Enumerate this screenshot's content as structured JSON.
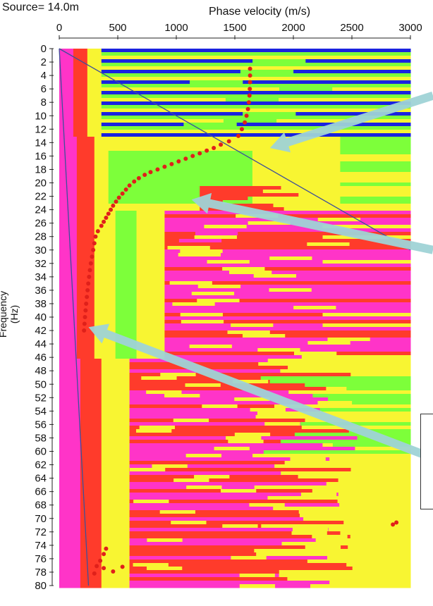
{
  "header": {
    "source_label": "Source= 14.0m",
    "x_axis_title": "Phase velocity (m/s)",
    "y_axis_title": "Frequency (Hz)"
  },
  "colors": {
    "background": "#ffffff",
    "picked_points": "#e0201a",
    "arrow": "#9fd3d6",
    "diagonal_line": "#3d4f9a",
    "magenta": "#ff34c8",
    "red": "#ff3b2b",
    "yellow": "#f8f532",
    "green": "#7dff3a",
    "blue": "#1a22e0"
  },
  "chart_data": {
    "type": "heatmap",
    "title": "",
    "xlabel": "Phase velocity (m/s)",
    "ylabel": "Frequency (Hz)",
    "xlim": [
      0,
      3000
    ],
    "ylim": [
      0,
      80
    ],
    "x_ticks": [
      "0",
      "500",
      "1000",
      "1500",
      "2000",
      "2500",
      "3000"
    ],
    "y_ticks": [
      "0",
      "2",
      "4",
      "6",
      "8",
      "10",
      "12",
      "14",
      "16",
      "18",
      "20",
      "22",
      "24",
      "26",
      "28",
      "30",
      "32",
      "34",
      "36",
      "38",
      "40",
      "42",
      "44",
      "46",
      "48",
      "50",
      "52",
      "54",
      "56",
      "58",
      "60",
      "62",
      "64",
      "66",
      "68",
      "70",
      "72",
      "74",
      "76",
      "78",
      "80"
    ],
    "picked_dispersion_curve": {
      "points": [
        [
          1630,
          3
        ],
        [
          1630,
          4
        ],
        [
          1630,
          5
        ],
        [
          1628,
          6
        ],
        [
          1625,
          7
        ],
        [
          1620,
          8
        ],
        [
          1612,
          9
        ],
        [
          1600,
          10
        ],
        [
          1585,
          11
        ],
        [
          1560,
          12
        ],
        [
          1530,
          13
        ],
        [
          1450,
          13.8
        ],
        [
          1380,
          14.3
        ],
        [
          1320,
          14.8
        ],
        [
          1260,
          15.2
        ],
        [
          1200,
          15.6
        ],
        [
          1140,
          16
        ],
        [
          1080,
          16.4
        ],
        [
          1020,
          16.8
        ],
        [
          960,
          17.2
        ],
        [
          900,
          17.6
        ],
        [
          840,
          18
        ],
        [
          780,
          18.4
        ],
        [
          730,
          18.8
        ],
        [
          680,
          19.3
        ],
        [
          640,
          19.8
        ],
        [
          600,
          20.4
        ],
        [
          570,
          21
        ],
        [
          540,
          21.6
        ],
        [
          510,
          22.2
        ],
        [
          485,
          22.8
        ],
        [
          460,
          23.4
        ],
        [
          440,
          24
        ],
        [
          420,
          24.6
        ],
        [
          400,
          25.2
        ],
        [
          380,
          25.8
        ],
        [
          360,
          26.4
        ],
        [
          330,
          27.2
        ],
        [
          310,
          28
        ],
        [
          300,
          29
        ],
        [
          290,
          30
        ],
        [
          280,
          31
        ],
        [
          270,
          32
        ],
        [
          262,
          33
        ],
        [
          255,
          34
        ],
        [
          248,
          35
        ],
        [
          242,
          36
        ],
        [
          236,
          37
        ],
        [
          230,
          38
        ],
        [
          225,
          39
        ],
        [
          220,
          40
        ],
        [
          216,
          41
        ],
        [
          212,
          42
        ]
      ],
      "outliers": [
        [
          2880,
          70.6
        ],
        [
          2850,
          70.9
        ],
        [
          400,
          74.5
        ],
        [
          380,
          75.3
        ],
        [
          350,
          76.3
        ],
        [
          320,
          77.1
        ],
        [
          380,
          77.4
        ],
        [
          540,
          77.2
        ],
        [
          460,
          77.9
        ],
        [
          300,
          78.2
        ]
      ]
    },
    "reference_lines": [
      {
        "from": [
          0,
          0
        ],
        "to": [
          3000,
          30
        ]
      },
      {
        "from": [
          0,
          0
        ],
        "to": [
          250,
          80
        ]
      }
    ],
    "annotation_arrows": [
      {
        "tail": [
          3200,
          7
        ],
        "head": [
          1800,
          14.8
        ]
      },
      {
        "tail": [
          3200,
          30
        ],
        "head": [
          1130,
          22.5
        ]
      },
      {
        "tail": [
          3200,
          61
        ],
        "head": [
          250,
          41.5
        ]
      }
    ]
  }
}
